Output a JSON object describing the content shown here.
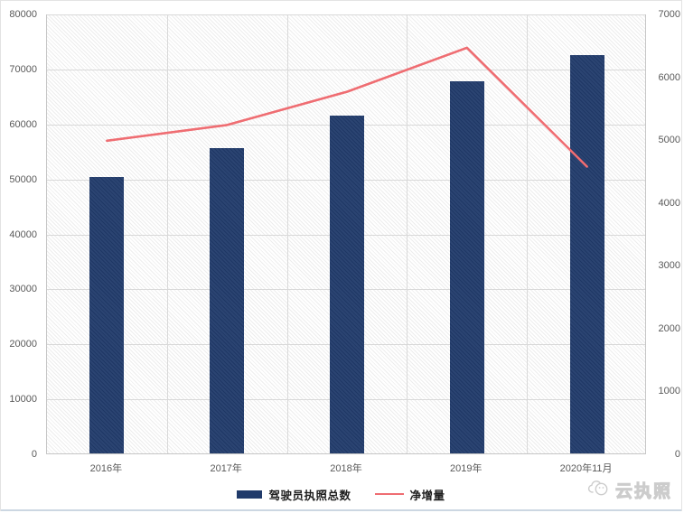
{
  "page": {
    "background": "#ffffff",
    "border_color": "#e3e3e3",
    "bottom_rule_color": "#ccd7e2"
  },
  "chart_data": {
    "type": "bar+line",
    "categories": [
      "2016年",
      "2017年",
      "2018年",
      "2019年",
      "2020年11月"
    ],
    "series": [
      {
        "name": "驾驶员执照总数",
        "type": "bar",
        "axis": "left",
        "color": "#203a6a",
        "values": [
          50200,
          55500,
          61400,
          67700,
          72400
        ]
      },
      {
        "name": "净增量",
        "type": "line",
        "axis": "right",
        "color": "#ef6d72",
        "values": [
          4990,
          5240,
          5770,
          6470,
          4580
        ]
      }
    ],
    "left_axis": {
      "min": 0,
      "max": 80000,
      "step": 10000,
      "tick_labels": [
        "0",
        "10000",
        "20000",
        "30000",
        "40000",
        "50000",
        "60000",
        "70000",
        "80000"
      ]
    },
    "right_axis": {
      "min": 0,
      "max": 7000,
      "step": 1000,
      "tick_labels": [
        "0",
        "1000",
        "2000",
        "3000",
        "4000",
        "5000",
        "6000",
        "7000"
      ]
    },
    "grid": true,
    "gridline_color": "#d9d9d9",
    "plot_hatch": true,
    "legend_position": "bottom",
    "title": "",
    "xlabel": "",
    "ylabel_left": "",
    "ylabel_right": ""
  },
  "legend": {
    "items": [
      {
        "label": "驾驶员执照总数",
        "swatch": "bar",
        "color": "#203a6a"
      },
      {
        "label": "净增量",
        "swatch": "line",
        "color": "#ef6d72"
      }
    ]
  },
  "watermark": {
    "text": "云执照",
    "icon": "cloud-logo-icon",
    "color": "#cccccc"
  }
}
